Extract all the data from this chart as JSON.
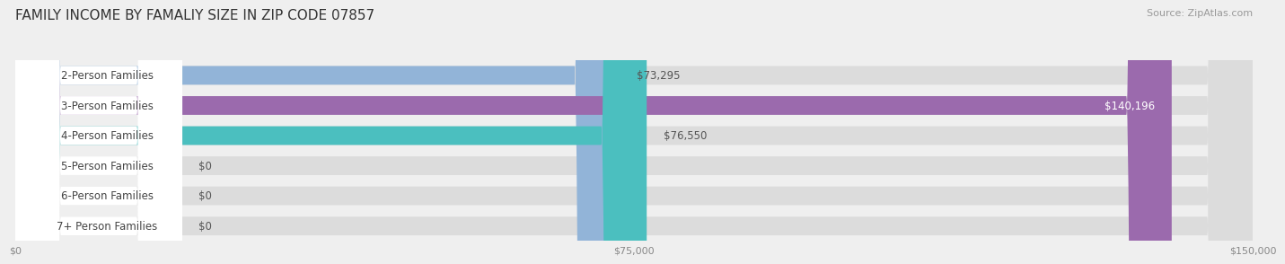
{
  "title": "FAMILY INCOME BY FAMALIY SIZE IN ZIP CODE 07857",
  "source": "Source: ZipAtlas.com",
  "categories": [
    "2-Person Families",
    "3-Person Families",
    "4-Person Families",
    "5-Person Families",
    "6-Person Families",
    "7+ Person Families"
  ],
  "values": [
    73295,
    140196,
    76550,
    0,
    0,
    0
  ],
  "bar_colors": [
    "#92b4d8",
    "#9b6aad",
    "#4bbfbf",
    "#a8a8d8",
    "#f48aaa",
    "#f5c990"
  ],
  "value_labels": [
    "$73,295",
    "$140,196",
    "$76,550",
    "$0",
    "$0",
    "$0"
  ],
  "xlim": [
    0,
    150000
  ],
  "xticks": [
    0,
    75000,
    150000
  ],
  "xticklabels": [
    "$0",
    "$75,000",
    "$150,000"
  ],
  "bg_color": "#efefef",
  "bar_bg_color": "#dcdcdc",
  "title_fontsize": 11,
  "source_fontsize": 8,
  "label_fontsize": 8.5,
  "value_fontsize": 8.5,
  "bar_height": 0.62,
  "figsize": [
    14.06,
    3.05
  ]
}
